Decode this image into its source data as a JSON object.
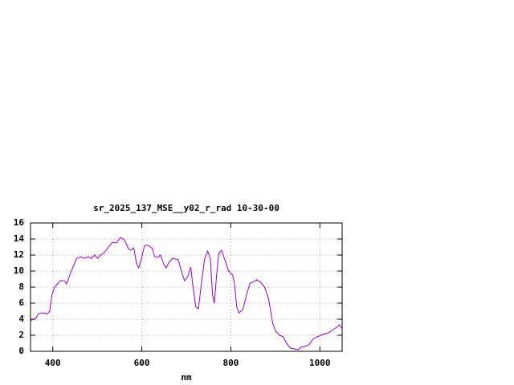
{
  "chart_data": {
    "type": "line",
    "title": "sr_2025_137_MSE__y02_r_rad 10-30-00",
    "x_label": "nm",
    "x": [
      350,
      363,
      368,
      381,
      386,
      393,
      398,
      404,
      417,
      426,
      431,
      440,
      453,
      462,
      471,
      480,
      487,
      494,
      501,
      507,
      516,
      525,
      534,
      543,
      552,
      561,
      570,
      575,
      582,
      588,
      593,
      599,
      606,
      615,
      624,
      629,
      636,
      642,
      649,
      655,
      660,
      669,
      682,
      689,
      696,
      703,
      710,
      714,
      721,
      727,
      734,
      741,
      748,
      754,
      759,
      763,
      768,
      773,
      779,
      786,
      795,
      804,
      808,
      813,
      818,
      827,
      835,
      843,
      849,
      858,
      867,
      876,
      885,
      894,
      900,
      909,
      918,
      925,
      934,
      943,
      952,
      957,
      966,
      975,
      984,
      993,
      1002,
      1011,
      1020,
      1029,
      1038,
      1044,
      1050
    ],
    "series": [
      {
        "name": "sr_2025_137_MSE__y02_r_rad",
        "color": "#9400d3",
        "values": [
          3.8,
          4.2,
          4.7,
          4.8,
          4.6,
          5.0,
          7.0,
          8.0,
          8.8,
          8.8,
          8.4,
          9.8,
          11.5,
          11.8,
          11.6,
          11.8,
          11.6,
          12.0,
          11.6,
          12.0,
          12.3,
          13.0,
          13.6,
          13.5,
          14.2,
          13.9,
          12.8,
          12.6,
          12.9,
          11.0,
          10.4,
          11.5,
          13.2,
          13.2,
          12.8,
          11.8,
          11.7,
          12.0,
          10.9,
          10.4,
          11.0,
          11.6,
          11.4,
          10.0,
          8.8,
          9.3,
          10.5,
          8.5,
          5.6,
          5.3,
          8.5,
          11.5,
          12.5,
          11.5,
          7.0,
          6.0,
          9.5,
          12.2,
          12.6,
          11.5,
          10.0,
          9.5,
          8.5,
          5.6,
          4.8,
          5.2,
          7.0,
          8.5,
          8.6,
          8.9,
          8.6,
          8.0,
          6.5,
          3.5,
          2.6,
          2.0,
          1.8,
          1.0,
          0.4,
          0.3,
          0.2,
          0.5,
          0.6,
          0.8,
          1.5,
          1.8,
          2.0,
          2.2,
          2.3,
          2.7,
          3.0,
          3.3,
          2.8
        ]
      }
    ],
    "xlim": [
      350,
      1050
    ],
    "xticks": [
      400,
      600,
      800,
      1000
    ],
    "ylim": [
      0,
      16
    ],
    "yticks": [
      0,
      2,
      4,
      6,
      8,
      10,
      12,
      14,
      16
    ],
    "grid": true
  }
}
